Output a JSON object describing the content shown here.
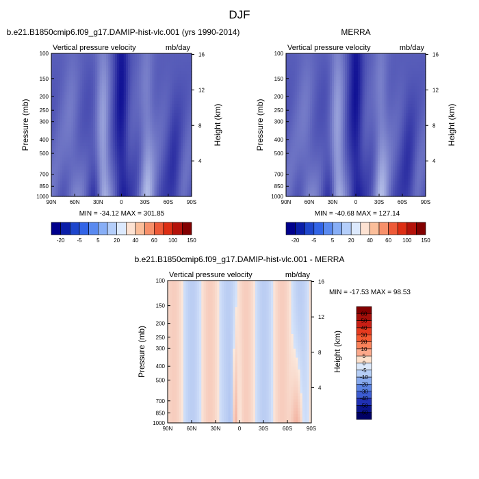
{
  "figure": {
    "season_title": "DJF"
  },
  "chart_data": [
    {
      "type": "heatmap",
      "title": "b.e21.B1850cmip6.f09_g17.DAMIP-hist-vlc.001 (yrs 1990-2014)",
      "left_label": "Vertical pressure velocity",
      "right_label": "mb/day",
      "xlabel": "",
      "ylabel": "Pressure (mb)",
      "y2label": "Height (km)",
      "x_ticks": [
        "90N",
        "60N",
        "30N",
        "0",
        "30S",
        "60S",
        "90S"
      ],
      "y_ticks": [
        "100",
        "150",
        "200",
        "250",
        "300",
        "400",
        "500",
        "700",
        "850",
        "1000"
      ],
      "y2_ticks": [
        "16",
        "12",
        "8",
        "4"
      ],
      "ylim": [
        1000,
        100
      ],
      "y_scale": "log",
      "stats": "MIN = -34.12   MAX = 301.85",
      "colorbar_labels": [
        "-20",
        "-5",
        "5",
        "20",
        "40",
        "60",
        "100",
        "150"
      ],
      "colorbar_colors": [
        "#00008c",
        "#0a1ea8",
        "#1e46cc",
        "#3264e6",
        "#5a8af0",
        "#87aef6",
        "#b4cefa",
        "#dce9fd",
        "#fde2d2",
        "#fbbe9a",
        "#f7906a",
        "#ee5a38",
        "#dd2e14",
        "#b4120a",
        "#820000"
      ],
      "dominant_sign": "negative"
    },
    {
      "type": "heatmap",
      "title": "MERRA",
      "left_label": "Vertical pressure velocity",
      "right_label": "mb/day",
      "xlabel": "",
      "ylabel": "Pressure (mb)",
      "y2label": "Height (km)",
      "x_ticks": [
        "90N",
        "60N",
        "30N",
        "0",
        "30S",
        "60S",
        "90S"
      ],
      "y_ticks": [
        "100",
        "150",
        "200",
        "250",
        "300",
        "400",
        "500",
        "700",
        "850",
        "1000"
      ],
      "y2_ticks": [
        "16",
        "12",
        "8",
        "4"
      ],
      "ylim": [
        1000,
        100
      ],
      "y_scale": "log",
      "stats": "MIN = -40.68   MAX = 127.14",
      "colorbar_labels": [
        "-20",
        "-5",
        "5",
        "20",
        "40",
        "60",
        "100",
        "150"
      ],
      "colorbar_colors": [
        "#00008c",
        "#0a1ea8",
        "#1e46cc",
        "#3264e6",
        "#5a8af0",
        "#87aef6",
        "#b4cefa",
        "#dce9fd",
        "#fde2d2",
        "#fbbe9a",
        "#f7906a",
        "#ee5a38",
        "#dd2e14",
        "#b4120a",
        "#820000"
      ],
      "dominant_sign": "negative"
    },
    {
      "type": "heatmap",
      "title": "b.e21.B1850cmip6.f09_g17.DAMIP-hist-vlc.001 - MERRA",
      "left_label": "Vertical pressure velocity",
      "right_label": "mb/day",
      "xlabel": "",
      "ylabel": "Pressure (mb)",
      "y2label": "Height (km)",
      "x_ticks": [
        "90N",
        "60N",
        "30N",
        "0",
        "30S",
        "60S",
        "90S"
      ],
      "y_ticks": [
        "100",
        "150",
        "200",
        "250",
        "300",
        "400",
        "500",
        "700",
        "850",
        "1000"
      ],
      "y2_ticks": [
        "16",
        "12",
        "8",
        "4"
      ],
      "ylim": [
        1000,
        100
      ],
      "y_scale": "log",
      "stats": "MIN = -17.53  MAX =  98.53",
      "colorbar_labels": [
        "60",
        "50",
        "40",
        "30",
        "20",
        "10",
        "5",
        "0",
        "-5",
        "-10",
        "-20",
        "-30",
        "-40",
        "-50",
        "-60"
      ],
      "colorbar_colors": [
        "#820000",
        "#a50f0a",
        "#c81e14",
        "#e63a1e",
        "#f55a32",
        "#fa825a",
        "#fca88a",
        "#fde1cc",
        "#dbe8fa",
        "#b4cdf6",
        "#87aaee",
        "#5a82e2",
        "#3c5cd2",
        "#2030b4",
        "#0a148c",
        "#000064"
      ],
      "dominant_sign": "mixed"
    }
  ]
}
